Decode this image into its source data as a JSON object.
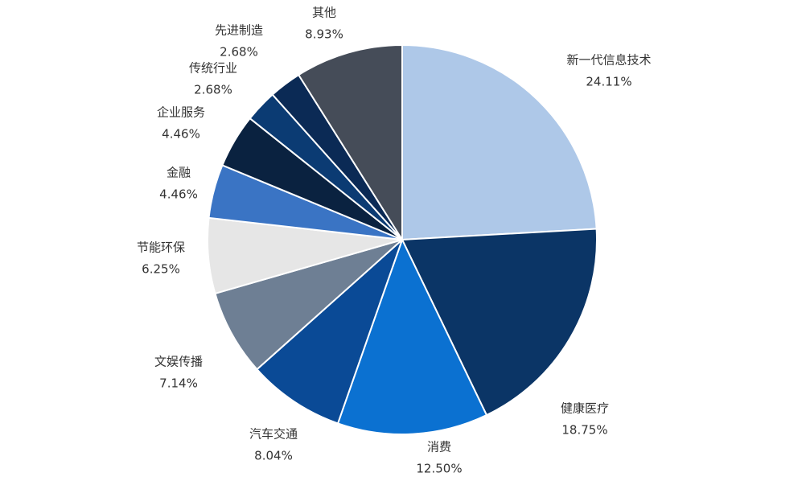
{
  "chart_data": {
    "type": "pie",
    "categories": [
      "新一代信息技术",
      "健康医疗",
      "消费",
      "汽车交通",
      "文娱传播",
      "节能环保",
      "金融",
      "企业服务",
      "传统行业",
      "先进制造",
      "其他"
    ],
    "values": [
      24.11,
      18.75,
      12.5,
      8.04,
      7.14,
      6.25,
      4.46,
      4.46,
      2.68,
      2.68,
      8.93
    ],
    "value_labels": [
      "24.11%",
      "18.75%",
      "12.50%",
      "8.04%",
      "7.14%",
      "6.25%",
      "4.46%",
      "4.46%",
      "2.68%",
      "2.68%",
      "8.93%"
    ],
    "colors": [
      "#aec8e8",
      "#0b3566",
      "#0b71d1",
      "#0a4a96",
      "#6e7f94",
      "#e6e6e6",
      "#3a74c4",
      "#0a2240",
      "#0b3b73",
      "#0b2a55",
      "#454c58"
    ]
  }
}
